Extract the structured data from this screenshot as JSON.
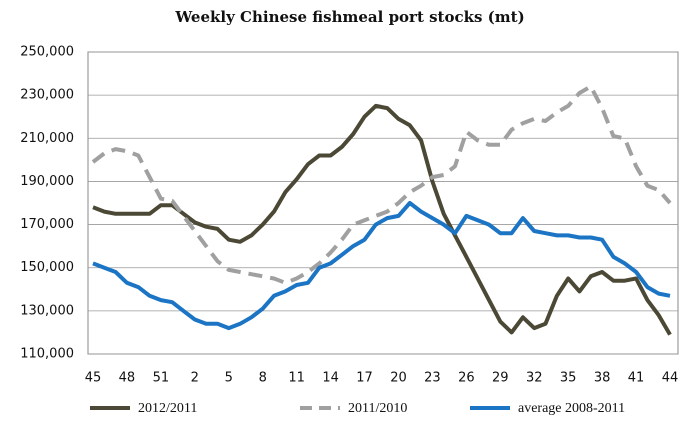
{
  "chart_data": {
    "type": "line",
    "title": "Weekly Chinese fishmeal port stocks (mt)",
    "categories": [
      "45",
      null,
      null,
      "48",
      null,
      null,
      "51",
      null,
      null,
      "2",
      null,
      null,
      "5",
      null,
      null,
      "8",
      null,
      null,
      "11",
      null,
      null,
      "14",
      null,
      null,
      "17",
      null,
      null,
      "20",
      null,
      null,
      "23",
      null,
      null,
      "26",
      null,
      null,
      "29",
      null,
      null,
      "32",
      null,
      null,
      "35",
      null,
      null,
      "38",
      null,
      null,
      "41",
      null,
      null,
      "44"
    ],
    "series": [
      {
        "name": "2012/2011",
        "color": "#4b4835",
        "dashed": false,
        "values": [
          178000,
          176000,
          175000,
          175000,
          175000,
          175000,
          179000,
          179000,
          175000,
          171000,
          169000,
          168000,
          163000,
          162000,
          165000,
          170000,
          176000,
          185000,
          191000,
          198000,
          202000,
          202000,
          206000,
          212000,
          220000,
          225000,
          224000,
          219000,
          216000,
          209000,
          190000,
          175000,
          165000,
          155000,
          145000,
          135000,
          125000,
          120000,
          127000,
          122000,
          124000,
          137000,
          145000,
          139000,
          146000,
          148000,
          144000,
          144000,
          145000,
          135000,
          128000,
          119000
        ]
      },
      {
        "name": "2011/2010",
        "color": "#a0a0a0",
        "dashed": true,
        "values": [
          199000,
          203000,
          205000,
          204000,
          202000,
          192000,
          182000,
          181000,
          174000,
          167000,
          160000,
          153000,
          149000,
          148000,
          147000,
          146000,
          145000,
          143000,
          145000,
          148000,
          152000,
          157000,
          163000,
          170000,
          172000,
          174000,
          176000,
          180000,
          185000,
          188000,
          192000,
          193000,
          197000,
          213000,
          209000,
          207000,
          207000,
          214000,
          217000,
          219000,
          218000,
          222000,
          225000,
          231000,
          234000,
          224000,
          211000,
          210000,
          197000,
          188000,
          186000,
          180000
        ]
      },
      {
        "name": "average 2008-2011",
        "color": "#1b75c4",
        "dashed": false,
        "values": [
          152000,
          150000,
          148000,
          143000,
          141000,
          137000,
          135000,
          134000,
          130000,
          126000,
          124000,
          124000,
          122000,
          124000,
          127000,
          131000,
          137000,
          139000,
          142000,
          143000,
          150000,
          152000,
          156000,
          160000,
          163000,
          170000,
          173000,
          174000,
          180000,
          176000,
          173000,
          170000,
          166000,
          174000,
          172000,
          170000,
          166000,
          166000,
          173000,
          167000,
          166000,
          165000,
          165000,
          164000,
          164000,
          163000,
          155000,
          152000,
          148000,
          141000,
          138000,
          137000
        ]
      }
    ],
    "ylim": [
      110000,
      250000
    ],
    "yticks": [
      {
        "value": 110000,
        "label": "110,000"
      },
      {
        "value": 130000,
        "label": "130,000"
      },
      {
        "value": 150000,
        "label": "150,000"
      },
      {
        "value": 170000,
        "label": "170,000"
      },
      {
        "value": 190000,
        "label": "190,000"
      },
      {
        "value": 210000,
        "label": "210,000"
      },
      {
        "value": 230000,
        "label": "230,000"
      },
      {
        "value": 250000,
        "label": "250,000"
      }
    ],
    "grid": true,
    "legend": "bottom"
  }
}
